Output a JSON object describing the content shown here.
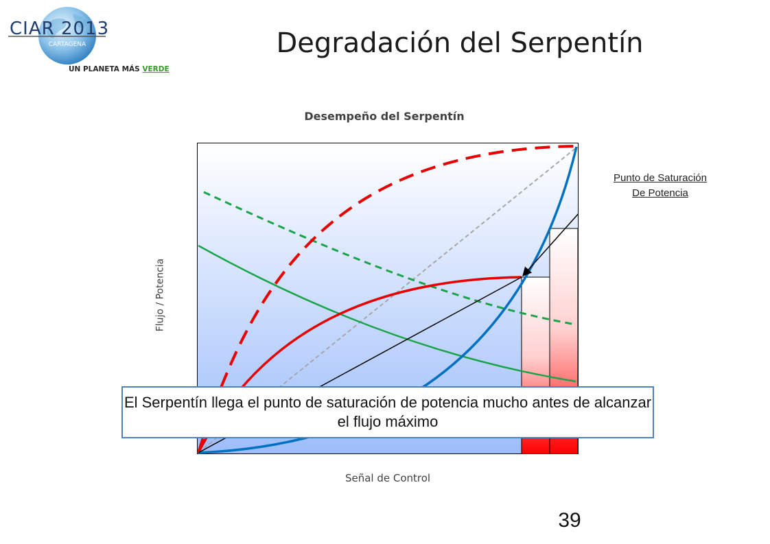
{
  "logo": {
    "brand": "CIAR 2013",
    "city": "CARTAGENA",
    "tagline_prefix": "UN PLANETA MÁS ",
    "tagline_accent": "VERDE"
  },
  "slide": {
    "title": "Degradación del Serpentín",
    "page_number": "39"
  },
  "chart": {
    "title": "Desempeño del Serpentín",
    "ylabel": "Flujo / Potencia",
    "xlabel": "Señal de Control",
    "annotation_line1": "Punto de Saturación",
    "annotation_line2": "De Potencia",
    "callout": "El Serpentín llega el punto de saturación de potencia mucho antes de alcanzar el flujo máximo"
  },
  "colors": {
    "red": "#e60000",
    "blue": "#0070c0",
    "green": "#1aa34a",
    "gray": "#a6a6a6",
    "callout_border": "#4f81bd",
    "logo_blue": "#1f5fa8",
    "logo_green": "#3a9a2f"
  },
  "icons": [
    "globe-logo-icon",
    "arrow-icon"
  ]
}
